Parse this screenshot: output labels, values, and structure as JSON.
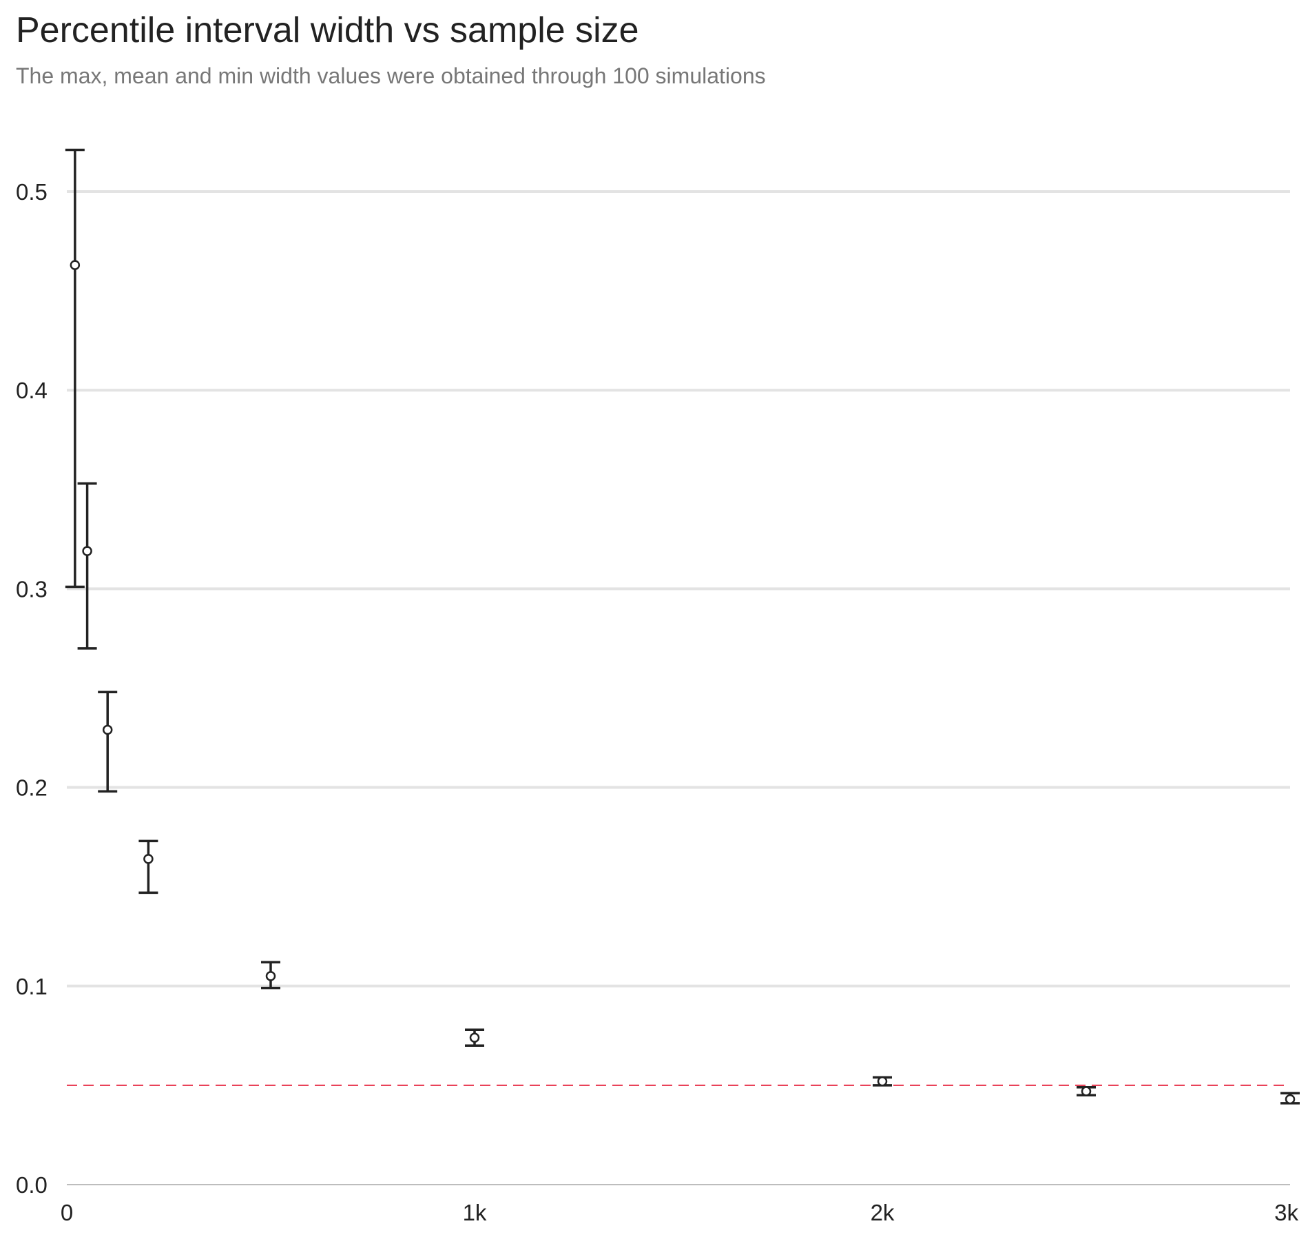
{
  "chart_data": {
    "type": "scatter",
    "title": "Percentile interval width vs sample size",
    "subtitle": "The max, mean and min width values were obtained through 100 simulations",
    "xlabel": "",
    "ylabel": "",
    "xlim": [
      0,
      3000
    ],
    "ylim": [
      0,
      0.52
    ],
    "x_ticks": [
      0,
      1000,
      2000,
      3000
    ],
    "x_tick_labels": [
      "0",
      "1k",
      "2k",
      "3k"
    ],
    "y_ticks": [
      0.0,
      0.1,
      0.2,
      0.3,
      0.4,
      0.5
    ],
    "y_tick_labels": [
      "0.0",
      "0.1",
      "0.2",
      "0.3",
      "0.4",
      "0.5"
    ],
    "grid": "horizontal",
    "reference_line": {
      "y": 0.05,
      "style": "dashed",
      "color": "#e8324a"
    },
    "points": [
      {
        "x": 20,
        "mean": 0.463,
        "min": 0.301,
        "max": 0.521
      },
      {
        "x": 50,
        "mean": 0.319,
        "min": 0.27,
        "max": 0.353
      },
      {
        "x": 100,
        "mean": 0.229,
        "min": 0.198,
        "max": 0.248
      },
      {
        "x": 200,
        "mean": 0.164,
        "min": 0.147,
        "max": 0.173
      },
      {
        "x": 500,
        "mean": 0.105,
        "min": 0.099,
        "max": 0.112
      },
      {
        "x": 1000,
        "mean": 0.074,
        "min": 0.07,
        "max": 0.078
      },
      {
        "x": 2000,
        "mean": 0.052,
        "min": 0.05,
        "max": 0.054
      },
      {
        "x": 2500,
        "mean": 0.047,
        "min": 0.045,
        "max": 0.049
      },
      {
        "x": 3000,
        "mean": 0.043,
        "min": 0.041,
        "max": 0.046
      }
    ],
    "colors": {
      "marks": "#222222",
      "grid": "#e3e3e3",
      "axis": "#bdbdbd",
      "point_fill": "#ffffff"
    }
  }
}
